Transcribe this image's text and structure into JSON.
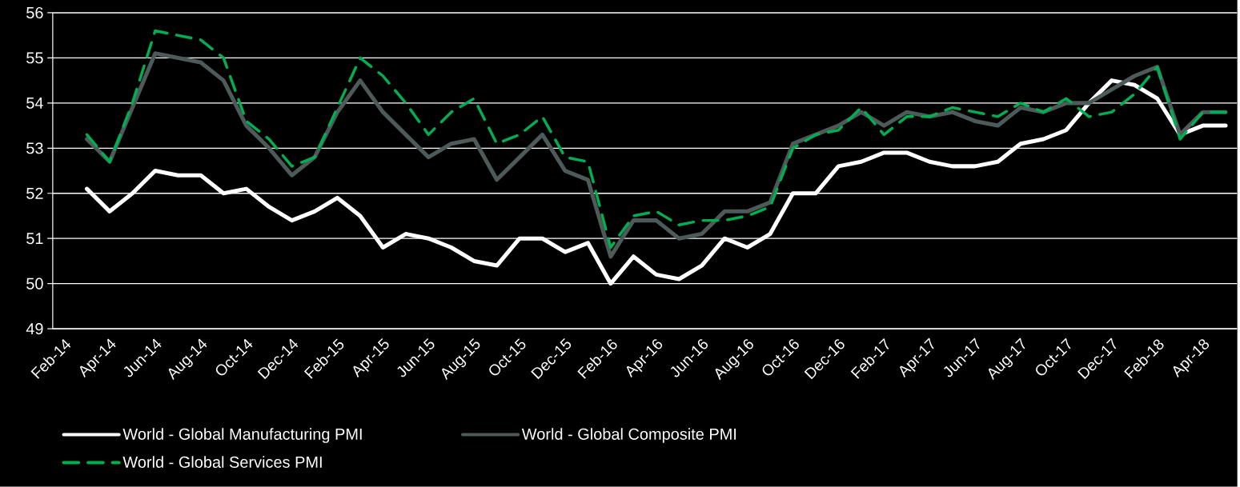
{
  "chart_data": {
    "type": "line",
    "categories": [
      "Feb-14",
      null,
      "Apr-14",
      null,
      "Jun-14",
      null,
      "Aug-14",
      null,
      "Oct-14",
      null,
      "Dec-14",
      null,
      "Feb-15",
      null,
      "Apr-15",
      null,
      "Jun-15",
      null,
      "Aug-15",
      null,
      "Oct-15",
      null,
      "Dec-15",
      null,
      "Feb-16",
      null,
      "Apr-16",
      null,
      "Jun-16",
      null,
      "Aug-16",
      null,
      "Oct-16",
      null,
      "Dec-16",
      null,
      "Feb-17",
      null,
      "Apr-17",
      null,
      "Jun-17",
      null,
      "Aug-17",
      null,
      "Oct-17",
      null,
      "Dec-17",
      null,
      "Feb-18",
      null,
      "Apr-18",
      null
    ],
    "series": [
      {
        "name": "World - Global Manufacturing PMI",
        "color": "#ffffff",
        "line_style": "solid",
        "values": [
          null,
          52.1,
          51.6,
          52.0,
          52.5,
          52.4,
          52.4,
          52.0,
          52.1,
          51.7,
          51.4,
          51.6,
          51.9,
          51.5,
          50.8,
          51.1,
          51.0,
          50.8,
          50.5,
          50.4,
          51.0,
          51.0,
          50.7,
          50.9,
          50.0,
          50.6,
          50.2,
          50.1,
          50.4,
          51.0,
          50.8,
          51.1,
          52.0,
          52.0,
          52.6,
          52.7,
          52.9,
          52.9,
          52.7,
          52.6,
          52.6,
          52.7,
          53.1,
          53.2,
          53.4,
          54.0,
          54.5,
          54.4,
          54.1,
          53.3,
          53.5,
          53.5
        ]
      },
      {
        "name": "World - Global Composite PMI",
        "color": "#4d5a5a",
        "line_style": "solid",
        "values": [
          null,
          53.2,
          52.7,
          53.9,
          55.1,
          55.0,
          54.9,
          54.5,
          53.5,
          53.0,
          52.4,
          52.8,
          53.8,
          54.5,
          53.8,
          53.3,
          52.8,
          53.1,
          53.2,
          52.3,
          52.8,
          53.3,
          52.5,
          52.3,
          50.6,
          51.4,
          51.4,
          51.0,
          51.1,
          51.6,
          51.6,
          51.8,
          53.1,
          53.3,
          53.5,
          53.8,
          53.5,
          53.8,
          53.7,
          53.8,
          53.6,
          53.5,
          53.9,
          53.8,
          54.0,
          54.0,
          54.3,
          54.6,
          54.8,
          53.3,
          53.8,
          53.8
        ]
      },
      {
        "name": "World - Global Services PMI",
        "color": "#00b050",
        "line_style": "dashed",
        "values": [
          null,
          53.3,
          52.7,
          54.0,
          55.6,
          55.5,
          55.4,
          55.0,
          53.6,
          53.2,
          52.6,
          52.8,
          53.9,
          55.0,
          54.6,
          54.0,
          53.3,
          53.8,
          54.1,
          53.1,
          53.3,
          53.7,
          52.8,
          52.7,
          50.8,
          51.5,
          51.6,
          51.3,
          51.4,
          51.4,
          51.5,
          51.7,
          53.0,
          53.3,
          53.4,
          53.9,
          53.3,
          53.7,
          53.7,
          53.9,
          53.8,
          53.7,
          54.0,
          53.8,
          54.1,
          53.7,
          53.8,
          54.2,
          54.8,
          53.2,
          53.8,
          53.8
        ]
      }
    ],
    "ylim": [
      49,
      56
    ],
    "yticks": [
      49,
      50,
      51,
      52,
      53,
      54,
      55,
      56
    ],
    "grid": "y",
    "legend": "bottom"
  }
}
